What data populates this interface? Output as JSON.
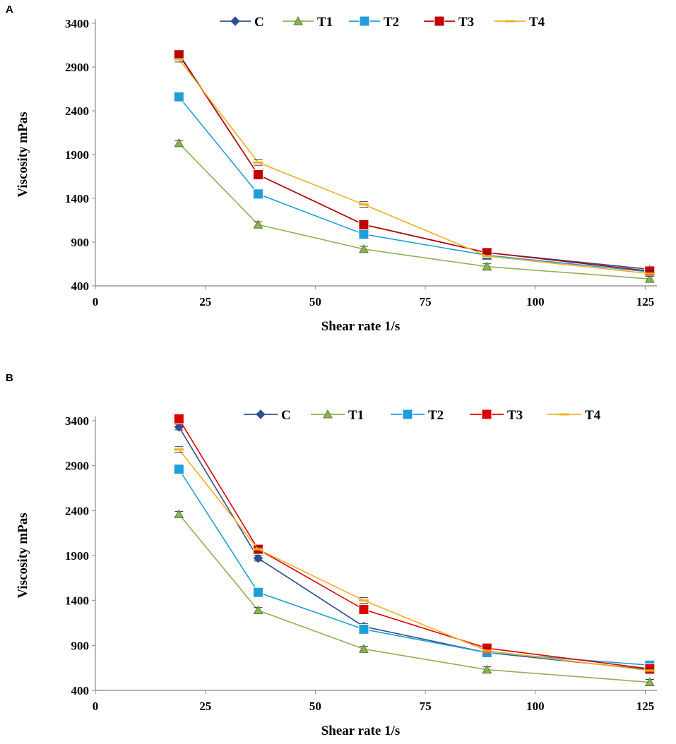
{
  "chart_data": [
    {
      "type": "line",
      "panel_label": "A",
      "xlabel": "Shear rate 1/s",
      "ylabel": "Viscosity mPas",
      "xlim": [
        0,
        127
      ],
      "ylim": [
        400,
        3400
      ],
      "xticks": [
        "0",
        "25",
        "50",
        "75",
        "100",
        "125"
      ],
      "yticks": [
        "400",
        "900",
        "1400",
        "1900",
        "2400",
        "2900",
        "3400"
      ],
      "x": [
        19,
        37,
        61,
        89,
        126
      ],
      "legend_position": "top",
      "series": [
        {
          "name": "C",
          "color": "#2f4f8f",
          "marker": "diamond",
          "values": [
            3050,
            1670,
            1100,
            780,
            590
          ]
        },
        {
          "name": "T1",
          "color": "#8db255",
          "marker": "triangle",
          "values": [
            2030,
            1100,
            820,
            620,
            480
          ]
        },
        {
          "name": "T2",
          "color": "#1f9fd8",
          "marker": "square",
          "values": [
            2560,
            1450,
            990,
            750,
            560
          ]
        },
        {
          "name": "T3",
          "color": "#c00000",
          "marker": "square",
          "values": [
            3040,
            1670,
            1100,
            780,
            570
          ]
        },
        {
          "name": "T4",
          "color": "#f0b020",
          "marker": "dash",
          "values": [
            2990,
            1810,
            1330,
            740,
            540
          ]
        }
      ]
    },
    {
      "type": "line",
      "panel_label": "B",
      "xlabel": "Shear rate 1/s",
      "ylabel": "Viscosity mPas",
      "xlim": [
        0,
        127
      ],
      "ylim": [
        400,
        3400
      ],
      "xticks": [
        "0",
        "25",
        "50",
        "75",
        "100",
        "125"
      ],
      "yticks": [
        "400",
        "900",
        "1400",
        "1900",
        "2400",
        "2900",
        "3400"
      ],
      "x": [
        19,
        37,
        61,
        89,
        126
      ],
      "legend_position": "top",
      "series": [
        {
          "name": "C",
          "color": "#2f4f8f",
          "marker": "diamond",
          "values": [
            3330,
            1870,
            1110,
            820,
            630
          ]
        },
        {
          "name": "T1",
          "color": "#8db255",
          "marker": "triangle",
          "values": [
            2360,
            1290,
            860,
            630,
            490
          ]
        },
        {
          "name": "T2",
          "color": "#1f9fd8",
          "marker": "square",
          "values": [
            2860,
            1490,
            1080,
            820,
            680
          ]
        },
        {
          "name": "T3",
          "color": "#e00000",
          "marker": "square",
          "values": [
            3420,
            1970,
            1300,
            870,
            640
          ]
        },
        {
          "name": "T4",
          "color": "#f0b020",
          "marker": "dash",
          "values": [
            3080,
            1970,
            1400,
            840,
            620
          ]
        }
      ]
    }
  ]
}
